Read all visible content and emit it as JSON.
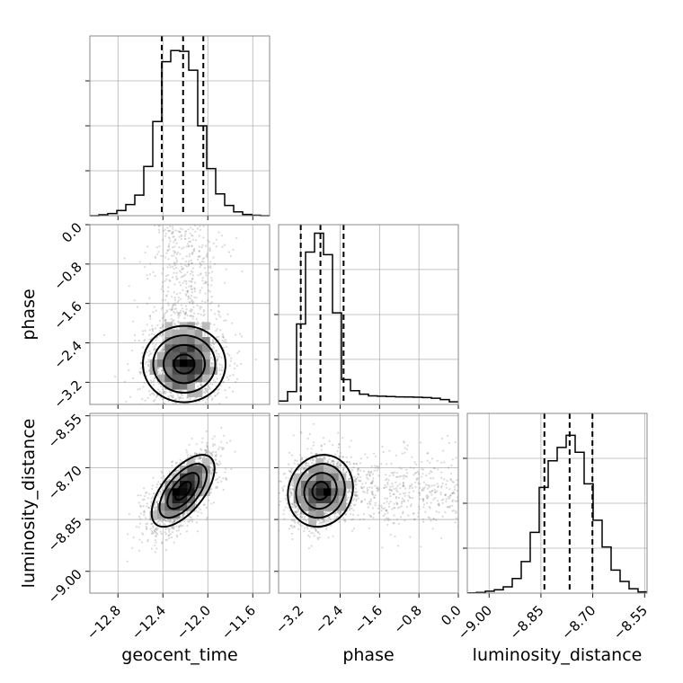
{
  "chart_data": {
    "type": "corner",
    "parameters": [
      "geocent_time",
      "phase",
      "luminosity_distance"
    ],
    "axis_labels": {
      "x": [
        "geocent_time",
        "phase",
        "luminosity_distance"
      ],
      "y": [
        "phase",
        "luminosity_distance"
      ]
    },
    "ranges": {
      "geocent_time": [
        -13.05,
        -11.45
      ],
      "phase": [
        -3.65,
        0.0
      ],
      "luminosity_distance": [
        -9.063,
        -8.543
      ]
    },
    "ticks": {
      "geocent_time": [
        -12.8,
        -12.4,
        -12.0,
        -11.6
      ],
      "phase": [
        -3.2,
        -2.4,
        -1.6,
        -0.8,
        0.0
      ],
      "luminosity_distance": [
        -9.0,
        -8.85,
        -8.7,
        -8.55
      ]
    },
    "tick_labels": {
      "geocent_time": [
        "−12.8",
        "−12.4",
        "−12.0",
        "−11.6"
      ],
      "phase": [
        "−3.2",
        "−2.4",
        "−1.6",
        "−0.8",
        "0.0"
      ],
      "phase_y": [
        "0.0",
        "−0.8",
        "−1.6",
        "−2.4",
        "−3.2"
      ],
      "luminosity_distance": [
        "−9.00",
        "−8.85",
        "−8.70",
        "−8.55"
      ],
      "luminosity_distance_y": [
        "−8.55",
        "−8.70",
        "−8.85",
        "−9.00"
      ]
    },
    "quantiles": {
      "geocent_time": [
        -12.41,
        -12.22,
        -12.04
      ],
      "phase": [
        -3.2,
        -2.8,
        -2.33
      ],
      "luminosity_distance": [
        -8.84,
        -8.767,
        -8.701
      ]
    },
    "histograms": {
      "geocent_time": {
        "bin_edges": [
          -13.05,
          -12.97,
          -12.89,
          -12.81,
          -12.73,
          -12.65,
          -12.57,
          -12.49,
          -12.41,
          -12.33,
          -12.25,
          -12.17,
          -12.09,
          -12.01,
          -11.93,
          -11.85,
          -11.77,
          -11.69,
          -11.61,
          -11.53,
          -11.45
        ],
        "counts": [
          0,
          2,
          5,
          12,
          26,
          48,
          115,
          220,
          360,
          386,
          384,
          340,
          210,
          110,
          51,
          24,
          9,
          3,
          1,
          0
        ],
        "ymax": 420
      },
      "phase": {
        "bin_edges": [
          -3.65,
          -3.4675,
          -3.285,
          -3.1025,
          -2.92,
          -2.7375,
          -2.555,
          -2.3725,
          -2.19,
          -2.0075,
          -1.825,
          -1.6425,
          -1.46,
          -1.2775,
          -1.095,
          -0.9125,
          -0.73,
          -0.5475,
          -0.365,
          -0.1825,
          0.0
        ],
        "counts": [
          20,
          75,
          470,
          890,
          1000,
          875,
          535,
          145,
          80,
          60,
          50,
          48,
          46,
          44,
          43,
          42,
          40,
          36,
          28,
          15
        ],
        "ymax": 1050
      },
      "luminosity_distance": {
        "bin_edges": [
          -9.063,
          -9.037,
          -9.011,
          -8.985,
          -8.959,
          -8.933,
          -8.907,
          -8.881,
          -8.855,
          -8.829,
          -8.803,
          -8.777,
          -8.751,
          -8.725,
          -8.699,
          -8.673,
          -8.647,
          -8.621,
          -8.595,
          -8.569,
          -8.543
        ],
        "counts": [
          1,
          3,
          8,
          14,
          26,
          60,
          130,
          250,
          435,
          545,
          600,
          650,
          580,
          450,
          300,
          190,
          95,
          48,
          18,
          5
        ],
        "ymax": 740
      }
    },
    "pair_distributions": [
      {
        "x": "geocent_time",
        "y": "phase",
        "mean": [
          -12.21,
          -2.83
        ],
        "std": [
          0.17,
          0.42
        ],
        "correlation": 0.0,
        "tail": "phase toward 0"
      },
      {
        "x": "geocent_time",
        "y": "luminosity_distance",
        "mean": [
          -12.22,
          -8.767
        ],
        "std": [
          0.14,
          0.052
        ],
        "correlation": 0.62
      },
      {
        "x": "phase",
        "y": "luminosity_distance",
        "mean": [
          -2.8,
          -8.767
        ],
        "std": [
          0.33,
          0.052
        ],
        "correlation": 0.1,
        "tail": "phase toward 0"
      }
    ],
    "contour_levels": [
      "0.5-sigma",
      "1-sigma",
      "1.5-sigma",
      "2-sigma"
    ],
    "grid": true
  }
}
